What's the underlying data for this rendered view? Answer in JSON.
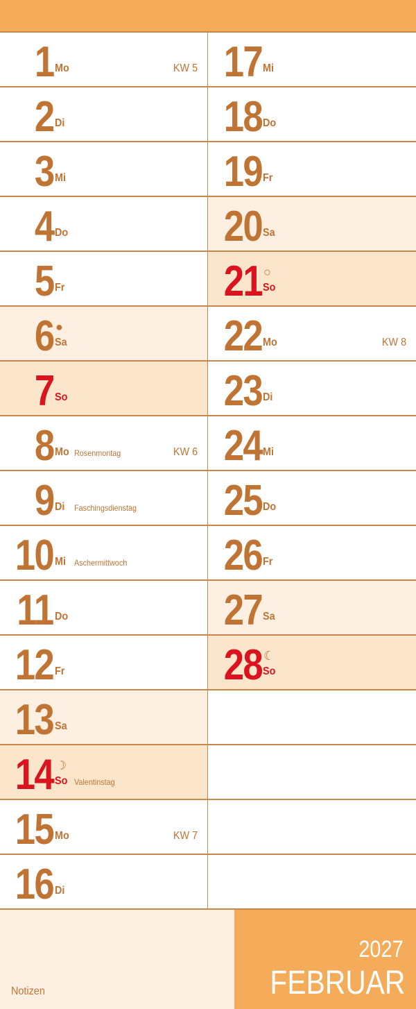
{
  "colors": {
    "accent": "#f4ab5a",
    "text": "#c07434",
    "sunday": "#d9141f",
    "saturday_bg": "#fdf0e3",
    "sunday_bg": "#fbe6cc"
  },
  "left_days": [
    {
      "num": "1",
      "wd": "Mo",
      "kw": "KW 5",
      "type": "day"
    },
    {
      "num": "2",
      "wd": "Di",
      "type": "day"
    },
    {
      "num": "3",
      "wd": "Mi",
      "type": "day"
    },
    {
      "num": "4",
      "wd": "Do",
      "type": "day"
    },
    {
      "num": "5",
      "wd": "Fr",
      "type": "day"
    },
    {
      "num": "6",
      "wd": "Sa",
      "type": "sat",
      "moon": "●"
    },
    {
      "num": "7",
      "wd": "So",
      "type": "sun"
    },
    {
      "num": "8",
      "wd": "Mo",
      "holiday": "Rosenmontag",
      "kw": "KW 6",
      "type": "day"
    },
    {
      "num": "9",
      "wd": "Di",
      "holiday": "Faschingsdienstag",
      "type": "day"
    },
    {
      "num": "10",
      "wd": "Mi",
      "holiday": "Aschermittwoch",
      "type": "day"
    },
    {
      "num": "11",
      "wd": "Do",
      "type": "day"
    },
    {
      "num": "12",
      "wd": "Fr",
      "type": "day"
    },
    {
      "num": "13",
      "wd": "Sa",
      "type": "sat"
    },
    {
      "num": "14",
      "wd": "So",
      "holiday": "Valentinstag",
      "type": "sun",
      "moon": "☽"
    },
    {
      "num": "15",
      "wd": "Mo",
      "kw": "KW 7",
      "type": "day"
    },
    {
      "num": "16",
      "wd": "Di",
      "type": "day"
    }
  ],
  "right_days": [
    {
      "num": "17",
      "wd": "Mi",
      "type": "day"
    },
    {
      "num": "18",
      "wd": "Do",
      "type": "day"
    },
    {
      "num": "19",
      "wd": "Fr",
      "type": "day"
    },
    {
      "num": "20",
      "wd": "Sa",
      "type": "sat"
    },
    {
      "num": "21",
      "wd": "So",
      "type": "sun",
      "moon": "○"
    },
    {
      "num": "22",
      "wd": "Mo",
      "kw": "KW 8",
      "type": "day"
    },
    {
      "num": "23",
      "wd": "Di",
      "type": "day"
    },
    {
      "num": "24",
      "wd": "Mi",
      "type": "day"
    },
    {
      "num": "25",
      "wd": "Do",
      "type": "day"
    },
    {
      "num": "26",
      "wd": "Fr",
      "type": "day"
    },
    {
      "num": "27",
      "wd": "Sa",
      "type": "sat"
    },
    {
      "num": "28",
      "wd": "So",
      "type": "sun",
      "moon": "☾"
    },
    {
      "type": "empty"
    },
    {
      "type": "empty"
    },
    {
      "type": "empty"
    },
    {
      "type": "empty"
    }
  ],
  "footer": {
    "notes_label": "Notizen",
    "year": "2027",
    "month": "FEBRUAR"
  }
}
